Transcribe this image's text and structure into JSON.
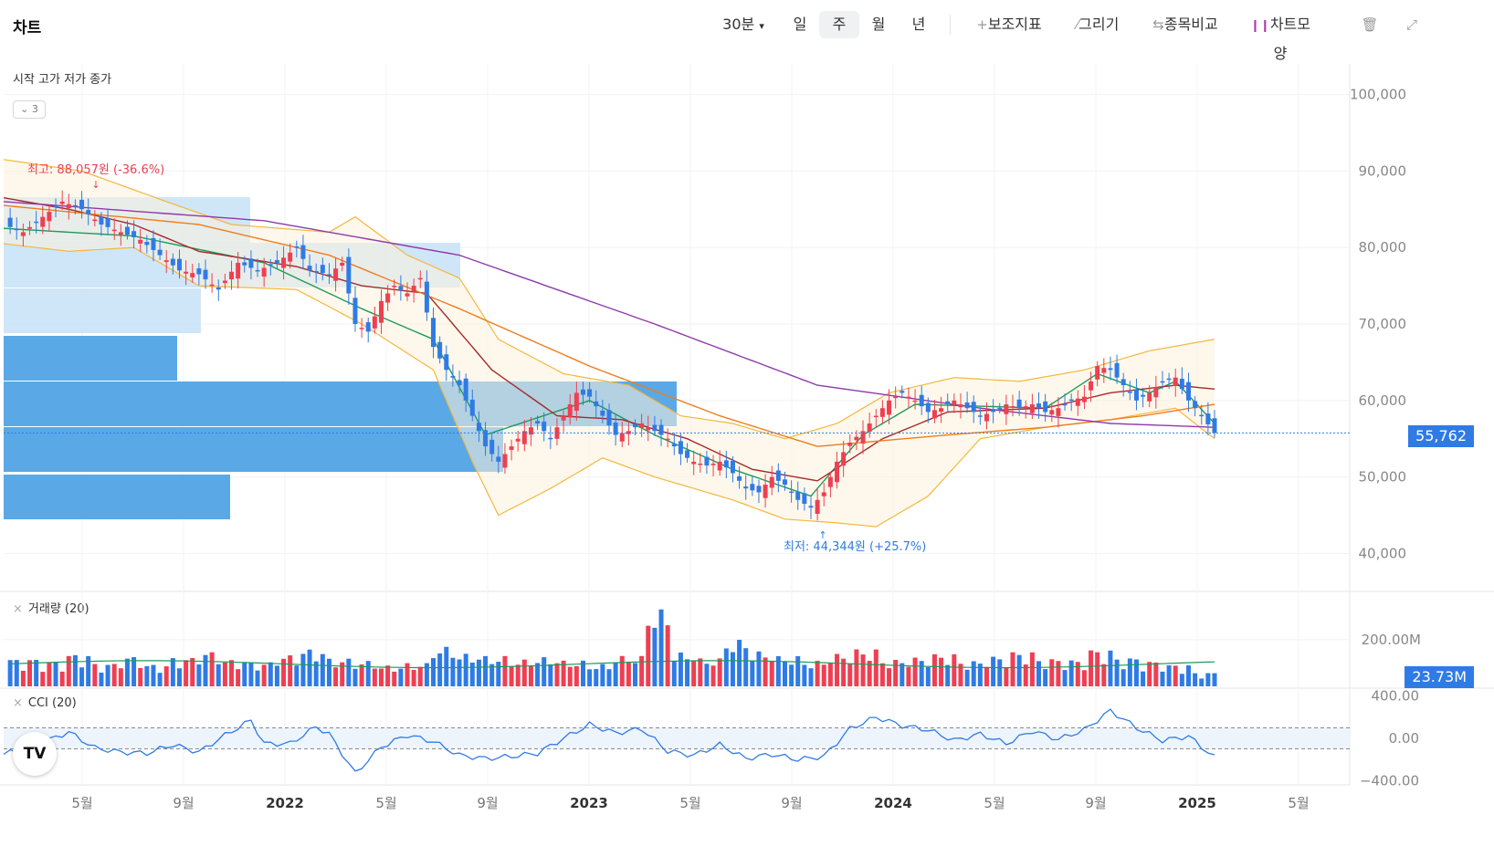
{
  "app": {
    "title": "차트"
  },
  "toolbar": {
    "interval_label": "30분",
    "periods": [
      "일",
      "주",
      "월",
      "년"
    ],
    "active_period": "주",
    "indicators_label": "보조지표",
    "draw_label": "그리기",
    "compare_label": "종목비교",
    "chart_style_label": "차트모양",
    "icons": [
      "chevron-down-icon",
      "plus-icon",
      "pencil-icon",
      "compare-arrows-icon",
      "candles-icon",
      "trash-icon",
      "expand-icon"
    ]
  },
  "legend": {
    "ohlc_label": "시작 고가 저가 종가",
    "indicator_count": "3"
  },
  "panes": {
    "volume_label": "거래량 (20)",
    "cci_label": "CCI (20)"
  },
  "annotations": {
    "high": "최고: 88,057원 (-36.6%)",
    "low": "최저: 44,344원 (+25.7%)"
  },
  "tags": {
    "last_price": "55,762",
    "last_volume": "23.73M"
  },
  "colors": {
    "up": "#ef3f52",
    "down": "#2f7be6",
    "ma5": "#1e9a5a",
    "ma20": "#a52a2a",
    "ma60": "#ef7d1e",
    "ma120": "#8e3aa8",
    "bollinger": "#f4b73d",
    "cci": "#2f7be6",
    "volume_profile_dark": "#5aa9e6",
    "volume_profile_light": "#c7e2f7"
  },
  "chart_data": {
    "type": "candlestick",
    "x_axis": {
      "tick_labels": [
        "5월",
        "9월",
        "2022",
        "5월",
        "9월",
        "2023",
        "5월",
        "9월",
        "2024",
        "5월",
        "9월",
        "2025",
        "5월"
      ],
      "bold_ticks": [
        "2022",
        "2023",
        "2024",
        "2025"
      ]
    },
    "price_axis": {
      "ticks": [
        40000,
        50000,
        60000,
        70000,
        80000,
        90000,
        100000
      ],
      "tick_labels": [
        "40,000",
        "50,000",
        "60,000",
        "70,000",
        "80,000",
        "90,000",
        "100,000"
      ],
      "ylim": [
        36000,
        104000
      ]
    },
    "volume_axis": {
      "tick_labels": [
        "200.00M"
      ],
      "ticks": [
        200
      ],
      "unit": "M"
    },
    "cci_axis": {
      "ticks": [
        400,
        0,
        -400
      ],
      "tick_labels": [
        "400.00",
        "0.00",
        "−400.00"
      ],
      "bands": [
        100,
        -100
      ]
    },
    "high": {
      "value": 88057,
      "label": "최고: 88,057원 (-36.6%)"
    },
    "low": {
      "value": 44344,
      "label": "최저: 44,344원 (+25.7%)"
    },
    "last_close": 55762,
    "last_volume_millions": 23.73,
    "close_trajectory": [
      [
        0,
        83000
      ],
      [
        3,
        82000
      ],
      [
        6,
        84000
      ],
      [
        9,
        86000
      ],
      [
        12,
        85000
      ],
      [
        15,
        83000
      ],
      [
        18,
        82000
      ],
      [
        21,
        81000
      ],
      [
        24,
        79000
      ],
      [
        27,
        77000
      ],
      [
        30,
        76500
      ],
      [
        33,
        74500
      ],
      [
        36,
        78000
      ],
      [
        39,
        77000
      ],
      [
        42,
        78000
      ],
      [
        45,
        80000
      ],
      [
        47,
        77000
      ],
      [
        50,
        76500
      ],
      [
        52,
        78000
      ],
      [
        54,
        70000
      ],
      [
        56,
        69000
      ],
      [
        58,
        73000
      ],
      [
        60,
        75000
      ],
      [
        62,
        74000
      ],
      [
        64,
        76000
      ],
      [
        66,
        67000
      ],
      [
        68,
        64000
      ],
      [
        70,
        62000
      ],
      [
        72,
        58000
      ],
      [
        74,
        54000
      ],
      [
        76,
        52000
      ],
      [
        78,
        54000
      ],
      [
        80,
        56000
      ],
      [
        82,
        57000
      ],
      [
        84,
        55000
      ],
      [
        86,
        58000
      ],
      [
        88,
        61000
      ],
      [
        90,
        60500
      ],
      [
        92,
        58000
      ],
      [
        94,
        55500
      ],
      [
        96,
        56000
      ],
      [
        98,
        57000
      ],
      [
        100,
        56000
      ],
      [
        102,
        55000
      ],
      [
        104,
        53000
      ],
      [
        106,
        52000
      ],
      [
        108,
        51500
      ],
      [
        110,
        52000
      ],
      [
        112,
        50500
      ],
      [
        114,
        48500
      ],
      [
        116,
        48000
      ],
      [
        118,
        50000
      ],
      [
        120,
        49000
      ],
      [
        122,
        47000
      ],
      [
        124,
        46000
      ],
      [
        126,
        48000
      ],
      [
        128,
        52000
      ],
      [
        130,
        54500
      ],
      [
        132,
        56000
      ],
      [
        134,
        58000
      ],
      [
        136,
        60000
      ],
      [
        138,
        61000
      ],
      [
        140,
        60000
      ],
      [
        142,
        58500
      ],
      [
        144,
        59000
      ],
      [
        146,
        60000
      ],
      [
        148,
        59000
      ],
      [
        150,
        58000
      ],
      [
        152,
        58500
      ],
      [
        154,
        59500
      ],
      [
        156,
        59000
      ],
      [
        158,
        59500
      ],
      [
        160,
        58500
      ],
      [
        162,
        59000
      ],
      [
        164,
        60000
      ],
      [
        166,
        60500
      ],
      [
        168,
        64500
      ],
      [
        170,
        64000
      ],
      [
        172,
        62000
      ],
      [
        174,
        60000
      ],
      [
        176,
        61000
      ],
      [
        178,
        62500
      ],
      [
        180,
        63000
      ],
      [
        182,
        60000
      ],
      [
        184,
        58000
      ],
      [
        186,
        55762
      ]
    ],
    "moving_averages": [
      {
        "name": "ma5",
        "points": [
          [
            0,
            82500
          ],
          [
            20,
            81500
          ],
          [
            40,
            78000
          ],
          [
            55,
            72000
          ],
          [
            66,
            68000
          ],
          [
            74,
            55500
          ],
          [
            90,
            60000
          ],
          [
            100,
            55500
          ],
          [
            112,
            51000
          ],
          [
            124,
            47500
          ],
          [
            132,
            55500
          ],
          [
            140,
            59500
          ],
          [
            160,
            59000
          ],
          [
            168,
            63500
          ],
          [
            176,
            61000
          ],
          [
            180,
            62500
          ],
          [
            186,
            57000
          ]
        ]
      },
      {
        "name": "ma20",
        "points": [
          [
            0,
            86500
          ],
          [
            10,
            85000
          ],
          [
            20,
            83000
          ],
          [
            30,
            79500
          ],
          [
            45,
            77500
          ],
          [
            55,
            75000
          ],
          [
            65,
            74000
          ],
          [
            75,
            64000
          ],
          [
            85,
            58000
          ],
          [
            95,
            57500
          ],
          [
            105,
            55000
          ],
          [
            115,
            51000
          ],
          [
            125,
            49500
          ],
          [
            135,
            55000
          ],
          [
            145,
            58500
          ],
          [
            160,
            59000
          ],
          [
            170,
            61000
          ],
          [
            180,
            62000
          ],
          [
            186,
            61500
          ]
        ]
      },
      {
        "name": "ma60",
        "points": [
          [
            0,
            85500
          ],
          [
            30,
            83000
          ],
          [
            50,
            79000
          ],
          [
            70,
            72000
          ],
          [
            90,
            64500
          ],
          [
            110,
            58000
          ],
          [
            125,
            54000
          ],
          [
            145,
            55500
          ],
          [
            160,
            56500
          ],
          [
            175,
            58000
          ],
          [
            186,
            59500
          ]
        ]
      },
      {
        "name": "ma120",
        "points": [
          [
            0,
            86000
          ],
          [
            40,
            83500
          ],
          [
            70,
            79000
          ],
          [
            100,
            70000
          ],
          [
            125,
            62000
          ],
          [
            150,
            59000
          ],
          [
            170,
            57000
          ],
          [
            186,
            56500
          ]
        ]
      }
    ],
    "bollinger_bands": [
      {
        "name": "upper",
        "points": [
          [
            0,
            91500
          ],
          [
            12,
            90000
          ],
          [
            25,
            86000
          ],
          [
            35,
            83000
          ],
          [
            50,
            82000
          ],
          [
            54,
            84000
          ],
          [
            62,
            79000
          ],
          [
            70,
            76000
          ],
          [
            76,
            68000
          ],
          [
            86,
            63500
          ],
          [
            96,
            62000
          ],
          [
            104,
            58000
          ],
          [
            112,
            57000
          ],
          [
            120,
            55000
          ],
          [
            128,
            57000
          ],
          [
            136,
            61000
          ],
          [
            146,
            63000
          ],
          [
            156,
            62500
          ],
          [
            166,
            64000
          ],
          [
            176,
            66500
          ],
          [
            186,
            68000
          ]
        ]
      },
      {
        "name": "lower",
        "points": [
          [
            0,
            80500
          ],
          [
            10,
            79500
          ],
          [
            20,
            80000
          ],
          [
            30,
            75000
          ],
          [
            45,
            74500
          ],
          [
            55,
            70000
          ],
          [
            66,
            64000
          ],
          [
            72,
            52000
          ],
          [
            76,
            45000
          ],
          [
            84,
            48500
          ],
          [
            92,
            52500
          ],
          [
            100,
            50000
          ],
          [
            112,
            47000
          ],
          [
            120,
            44500
          ],
          [
            128,
            44000
          ],
          [
            134,
            43500
          ],
          [
            142,
            47500
          ],
          [
            150,
            55000
          ],
          [
            160,
            56500
          ],
          [
            170,
            57500
          ],
          [
            180,
            59000
          ],
          [
            186,
            55000
          ]
        ]
      }
    ],
    "volume_profile_note": "horizontal volume-by-price bars at left edge",
    "volume_millions_sample": [
      120,
      110,
      140,
      100,
      130,
      95,
      125,
      150,
      115,
      105,
      135,
      160,
      120,
      110,
      90,
      100,
      170,
      140,
      130,
      115,
      125,
      110,
      95,
      130,
      330,
      145,
      120,
      200,
      150,
      130,
      110,
      140,
      160,
      115,
      125,
      140,
      110,
      130,
      150,
      120,
      115,
      160,
      125,
      110,
      95,
      60
    ],
    "cci_trajectory": [
      [
        0,
        -150
      ],
      [
        6,
        -40
      ],
      [
        10,
        60
      ],
      [
        14,
        -90
      ],
      [
        18,
        -130
      ],
      [
        22,
        -140
      ],
      [
        26,
        -60
      ],
      [
        30,
        -130
      ],
      [
        34,
        30
      ],
      [
        38,
        170
      ],
      [
        40,
        -50
      ],
      [
        44,
        -50
      ],
      [
        48,
        110
      ],
      [
        50,
        40
      ],
      [
        54,
        -330
      ],
      [
        58,
        -80
      ],
      [
        62,
        30
      ],
      [
        66,
        -30
      ],
      [
        70,
        -160
      ],
      [
        74,
        -190
      ],
      [
        78,
        -170
      ],
      [
        82,
        -140
      ],
      [
        86,
        0
      ],
      [
        90,
        130
      ],
      [
        94,
        50
      ],
      [
        98,
        90
      ],
      [
        102,
        -120
      ],
      [
        106,
        -160
      ],
      [
        110,
        -60
      ],
      [
        114,
        -190
      ],
      [
        118,
        -150
      ],
      [
        122,
        -200
      ],
      [
        126,
        -170
      ],
      [
        130,
        90
      ],
      [
        134,
        200
      ],
      [
        138,
        120
      ],
      [
        142,
        80
      ],
      [
        146,
        -20
      ],
      [
        150,
        40
      ],
      [
        154,
        -50
      ],
      [
        158,
        70
      ],
      [
        162,
        -10
      ],
      [
        166,
        80
      ],
      [
        170,
        260
      ],
      [
        174,
        100
      ],
      [
        178,
        -20
      ],
      [
        182,
        20
      ],
      [
        186,
        -180
      ]
    ]
  }
}
